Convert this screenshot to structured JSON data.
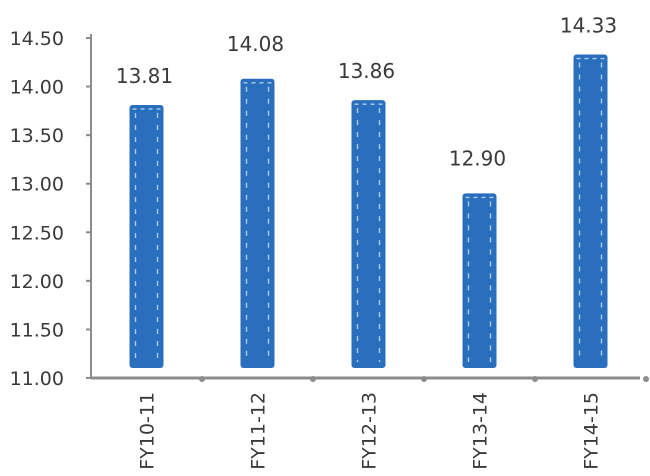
{
  "chart_data": {
    "type": "bar",
    "categories": [
      "FY10-11",
      "FY11-12",
      "FY12-13",
      "FY13-14",
      "FY14-15"
    ],
    "values": [
      13.81,
      14.08,
      13.86,
      12.9,
      14.33
    ],
    "data_labels": [
      "13.81",
      "14.08",
      "13.86",
      "12.90",
      "14.33"
    ],
    "yticks": [
      "11.00",
      "11.50",
      "12.00",
      "12.50",
      "13.00",
      "13.50",
      "14.00",
      "14.50"
    ],
    "ylim": [
      11.0,
      14.5
    ],
    "bar_color": "#2a6fbd",
    "bar_dash_color": "#a9cdf0",
    "axis_color": "#8c8c8c",
    "grid": false,
    "legend": "none"
  }
}
